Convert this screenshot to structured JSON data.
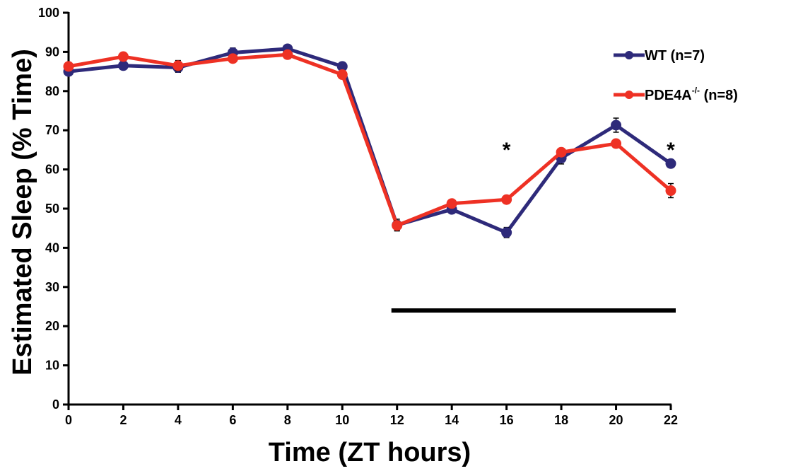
{
  "chart_data": {
    "type": "line",
    "xlabel": "Time (ZT hours)",
    "ylabel": "Estimated Sleep (% Time)",
    "xlim": [
      0,
      22
    ],
    "ylim": [
      0,
      100
    ],
    "x": [
      0,
      2,
      4,
      6,
      8,
      10,
      12,
      14,
      16,
      18,
      20,
      22
    ],
    "xticks": [
      "0",
      "2",
      "4",
      "6",
      "8",
      "10",
      "12",
      "14",
      "16",
      "18",
      "20",
      "22"
    ],
    "yticks": [
      "0",
      "10",
      "20",
      "30",
      "40",
      "50",
      "60",
      "70",
      "80",
      "90",
      "100"
    ],
    "grid": false,
    "legend_position": "top-right",
    "series": [
      {
        "name": "WT (n=7)",
        "color": "#2e2a7a",
        "values": [
          85.0,
          86.5,
          86.0,
          89.8,
          90.8,
          86.3,
          45.8,
          49.8,
          43.9,
          62.9,
          71.3,
          61.5
        ],
        "errors": [
          0.6,
          0.6,
          1.2,
          1.2,
          0.6,
          0.8,
          1.5,
          0.8,
          1.3,
          1.5,
          1.8,
          0.8
        ]
      },
      {
        "name_prefix": "PDE4A",
        "name_superscript": "-/-",
        "name_suffix": " (n=8)",
        "color": "#ee3124",
        "values": [
          86.3,
          88.8,
          86.5,
          88.3,
          89.3,
          84.2,
          45.7,
          51.3,
          52.3,
          64.4,
          66.6,
          54.6
        ],
        "errors": [
          0.6,
          0.8,
          1.3,
          0.8,
          0.6,
          0.8,
          1.2,
          0.6,
          0.6,
          1.0,
          0.8,
          1.8
        ]
      }
    ],
    "annotations": [
      {
        "text": "*",
        "x": 16,
        "y": 67
      },
      {
        "text": "*",
        "x": 22,
        "y": 67
      }
    ],
    "dark_phase_bar": {
      "x_start": 12,
      "x_end": 22,
      "y": 24
    }
  }
}
